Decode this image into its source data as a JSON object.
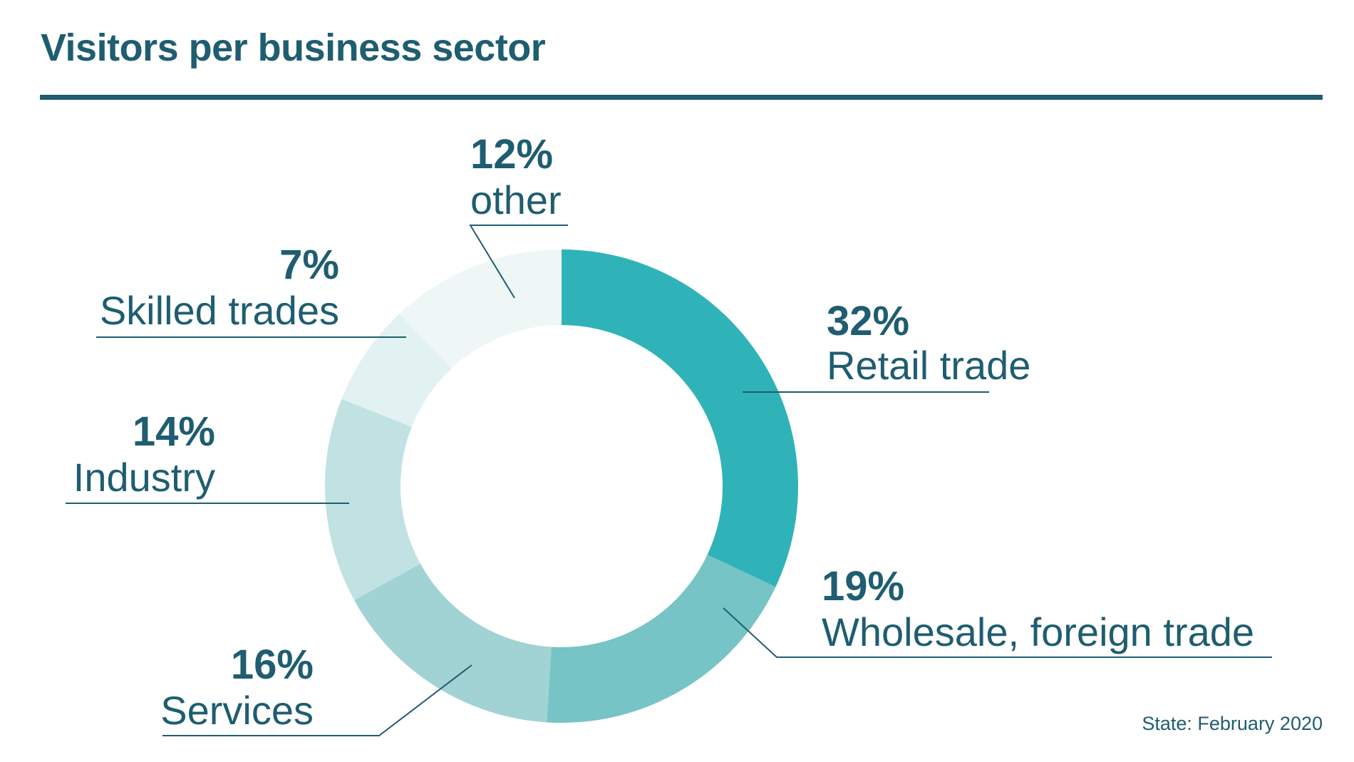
{
  "header": {
    "title": "Visitors per business sector"
  },
  "footnote": "State: February 2020",
  "chart_data": {
    "type": "pie",
    "title": "Visitors per business sector",
    "unit": "%",
    "slices": [
      {
        "label": "Retail trade",
        "value": 32,
        "value_label": "32%",
        "color": "#30b3b8"
      },
      {
        "label": "Wholesale, foreign trade",
        "value": 19,
        "value_label": "19%",
        "color": "#76c4c6"
      },
      {
        "label": "Services",
        "value": 16,
        "value_label": "16%",
        "color": "#a1d3d5"
      },
      {
        "label": "Industry",
        "value": 14,
        "value_label": "14%",
        "color": "#c1e2e3"
      },
      {
        "label": "Skilled trades",
        "value": 7,
        "value_label": "7%",
        "color": "#e2f1f1"
      },
      {
        "label": "other",
        "value": 12,
        "value_label": "12%",
        "color": "#eff7f6"
      }
    ]
  }
}
